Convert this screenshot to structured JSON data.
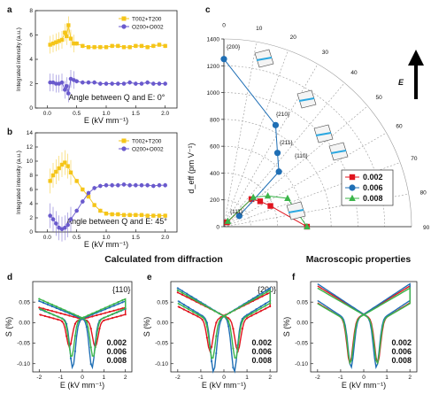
{
  "section_titles": {
    "left": "Calculated from diffraction",
    "right": "Macroscopic properties"
  },
  "colors": {
    "yellow": "#f5c518",
    "purple": "#6a5acd",
    "red": "#e0141e",
    "blue": "#1f6fb5",
    "green": "#3bb54a"
  },
  "chart_data": [
    {
      "panel": "a",
      "type": "line",
      "title": "Angle between Q and E: 0°",
      "xlabel": "E (kV mm⁻¹)",
      "ylabel": "Integrated intensity (a.u.)",
      "xlim": [
        -0.2,
        2.2
      ],
      "ylim": [
        0,
        8
      ],
      "xticks": [
        "0.0",
        "0.5",
        "1.0",
        "1.5",
        "2.0"
      ],
      "yticks": [
        "0",
        "2",
        "4",
        "6",
        "8"
      ],
      "legend": [
        "T002+T200",
        "O200+O002"
      ],
      "series": [
        {
          "name": "T002+T200",
          "color": "yellow",
          "x": [
            0.05,
            0.1,
            0.15,
            0.2,
            0.25,
            0.3,
            0.33,
            0.36,
            0.4,
            0.45,
            0.5,
            0.6,
            0.7,
            0.8,
            0.9,
            1.0,
            1.1,
            1.2,
            1.3,
            1.4,
            1.5,
            1.6,
            1.7,
            1.8,
            1.9,
            2.0
          ],
          "y": [
            5.2,
            5.3,
            5.4,
            5.5,
            5.6,
            6.2,
            5.9,
            6.8,
            5.7,
            5.3,
            5.3,
            5.1,
            5.0,
            5.0,
            5.0,
            5.0,
            5.1,
            5.1,
            5.0,
            5.0,
            5.1,
            5.1,
            5.0,
            5.1,
            5.2,
            5.1
          ]
        },
        {
          "name": "O200+O002",
          "color": "purple",
          "x": [
            0.05,
            0.1,
            0.15,
            0.2,
            0.25,
            0.3,
            0.33,
            0.36,
            0.4,
            0.45,
            0.5,
            0.6,
            0.7,
            0.8,
            0.9,
            1.0,
            1.1,
            1.2,
            1.3,
            1.4,
            1.5,
            1.6,
            1.7,
            1.8,
            1.9,
            2.0
          ],
          "y": [
            2.1,
            2.1,
            2.0,
            2.0,
            2.1,
            1.5,
            1.8,
            1.2,
            2.4,
            2.3,
            2.2,
            2.1,
            2.1,
            2.1,
            2.0,
            2.0,
            2.0,
            2.0,
            2.0,
            2.1,
            2.0,
            2.0,
            2.1,
            2.0,
            2.0,
            2.0
          ]
        }
      ]
    },
    {
      "panel": "b",
      "type": "line",
      "title": "Angle between Q and E: 45°",
      "xlabel": "E (kV mm⁻¹)",
      "ylabel": "Integrated intensity (a.u.)",
      "xlim": [
        -0.2,
        2.2
      ],
      "ylim": [
        0,
        14
      ],
      "xticks": [
        "0.0",
        "0.5",
        "1.0",
        "1.5",
        "2.0"
      ],
      "yticks": [
        "0",
        "2",
        "4",
        "6",
        "8",
        "10",
        "12",
        "14"
      ],
      "legend": [
        "T002+T200",
        "O200+O002"
      ],
      "series": [
        {
          "name": "T002+T200",
          "color": "yellow",
          "x": [
            0.05,
            0.1,
            0.15,
            0.2,
            0.25,
            0.3,
            0.35,
            0.4,
            0.5,
            0.6,
            0.7,
            0.8,
            0.9,
            1.0,
            1.1,
            1.2,
            1.3,
            1.4,
            1.5,
            1.6,
            1.7,
            1.8,
            1.9,
            2.0
          ],
          "y": [
            7.2,
            8.0,
            8.5,
            9.0,
            9.5,
            9.8,
            9.3,
            8.4,
            7.2,
            6.0,
            5.0,
            3.8,
            3.0,
            2.6,
            2.5,
            2.5,
            2.4,
            2.4,
            2.4,
            2.4,
            2.3,
            2.3,
            2.3,
            2.3
          ]
        },
        {
          "name": "O200+O002",
          "color": "purple",
          "x": [
            0.05,
            0.1,
            0.15,
            0.2,
            0.25,
            0.3,
            0.35,
            0.4,
            0.5,
            0.6,
            0.7,
            0.8,
            0.9,
            1.0,
            1.1,
            1.2,
            1.3,
            1.4,
            1.5,
            1.6,
            1.7,
            1.8,
            1.9,
            2.0
          ],
          "y": [
            2.3,
            1.8,
            1.2,
            0.6,
            0.4,
            0.6,
            1.0,
            1.8,
            3.0,
            4.3,
            5.5,
            6.2,
            6.5,
            6.6,
            6.6,
            6.6,
            6.7,
            6.6,
            6.6,
            6.6,
            6.6,
            6.5,
            6.6,
            6.6
          ]
        }
      ]
    },
    {
      "panel": "c",
      "type": "scatter",
      "subtype": "polar-quadrant",
      "ylabel": "d_eff (pm V⁻¹)",
      "radial_ticks": [
        "0",
        "200",
        "400",
        "600",
        "800",
        "1000",
        "1200",
        "1400"
      ],
      "angle_ticks": [
        "0",
        "10",
        "20",
        "30",
        "40",
        "50",
        "60",
        "70",
        "80",
        "90"
      ],
      "arrow_label": "E",
      "directions": [
        "{200}",
        "{210}",
        "{211}",
        "{110}",
        "{111}"
      ],
      "legend": [
        "0.002",
        "0.006",
        "0.008"
      ],
      "series": [
        {
          "name": "0.002",
          "color": "red",
          "angle_deg": [
            90,
            66,
            55,
            45,
            36
          ],
          "r": [
            620,
            380,
            330,
            290,
            40
          ]
        },
        {
          "name": "0.006",
          "color": "blue",
          "angle_deg": [
            0,
            27,
            36,
            45,
            55
          ],
          "r": [
            1250,
            850,
            680,
            580,
            140
          ]
        },
        {
          "name": "0.008",
          "color": "green",
          "angle_deg": [
            90,
            66,
            55,
            45,
            36
          ],
          "r": [
            620,
            520,
            400,
            310,
            50
          ]
        }
      ]
    },
    {
      "panel": "d",
      "type": "line",
      "subtype": "butterfly",
      "label": "{110}",
      "xlabel": "E (kV mm⁻¹)",
      "ylabel": "S (%)",
      "xlim": [
        -2.3,
        2.3
      ],
      "ylim": [
        -0.12,
        0.1
      ],
      "xticks": [
        "-2",
        "-1",
        "0",
        "1",
        "2"
      ],
      "yticks": [
        "-0.10",
        "-0.05",
        "0.00",
        "0.05"
      ],
      "legend": [
        "0.002",
        "0.006",
        "0.008"
      ],
      "series": [
        {
          "name": "0.002",
          "color": "red",
          "amp": 0.035,
          "ec": 0.6,
          "depth": 0.06
        },
        {
          "name": "0.006",
          "color": "blue",
          "amp": 0.05,
          "ec": 0.45,
          "depth": 0.11
        },
        {
          "name": "0.008",
          "color": "green",
          "amp": 0.055,
          "ec": 0.5,
          "depth": 0.085
        }
      ]
    },
    {
      "panel": "e",
      "type": "line",
      "subtype": "butterfly",
      "label": "{200}",
      "xlabel": "E (kV mm⁻¹)",
      "ylabel": "S (%)",
      "xlim": [
        -2.3,
        2.3
      ],
      "ylim": [
        -0.12,
        0.1
      ],
      "xticks": [
        "-2",
        "-1",
        "0",
        "1",
        "2"
      ],
      "yticks": [
        "-0.10",
        "-0.05",
        "0.00",
        "0.05"
      ],
      "legend": [
        "0.002",
        "0.006",
        "0.008"
      ],
      "series": [
        {
          "name": "0.002",
          "color": "red",
          "amp": 0.07,
          "ec": 0.6,
          "depth": 0.07
        },
        {
          "name": "0.006",
          "color": "blue",
          "amp": 0.08,
          "ec": 0.45,
          "depth": 0.12
        },
        {
          "name": "0.008",
          "color": "green",
          "amp": 0.075,
          "ec": 0.5,
          "depth": 0.09
        }
      ]
    },
    {
      "panel": "f",
      "type": "line",
      "subtype": "butterfly",
      "xlabel": "E (kV mm⁻¹)",
      "ylabel": "S (%)",
      "xlim": [
        -2.3,
        2.3
      ],
      "ylim": [
        -0.12,
        0.1
      ],
      "xticks": [
        "-2",
        "-1",
        "0",
        "1",
        "2"
      ],
      "yticks": [
        "-0.10",
        "-0.05",
        "0.00",
        "0.05"
      ],
      "legend": [
        "0.002",
        "0.006",
        "0.008"
      ],
      "series": [
        {
          "name": "0.002",
          "color": "red",
          "amp": 0.085,
          "ec": 0.6,
          "depth": 0.1
        },
        {
          "name": "0.006",
          "color": "blue",
          "amp": 0.09,
          "ec": 0.55,
          "depth": 0.11
        },
        {
          "name": "0.008",
          "color": "green",
          "amp": 0.08,
          "ec": 0.58,
          "depth": 0.1
        }
      ]
    }
  ]
}
